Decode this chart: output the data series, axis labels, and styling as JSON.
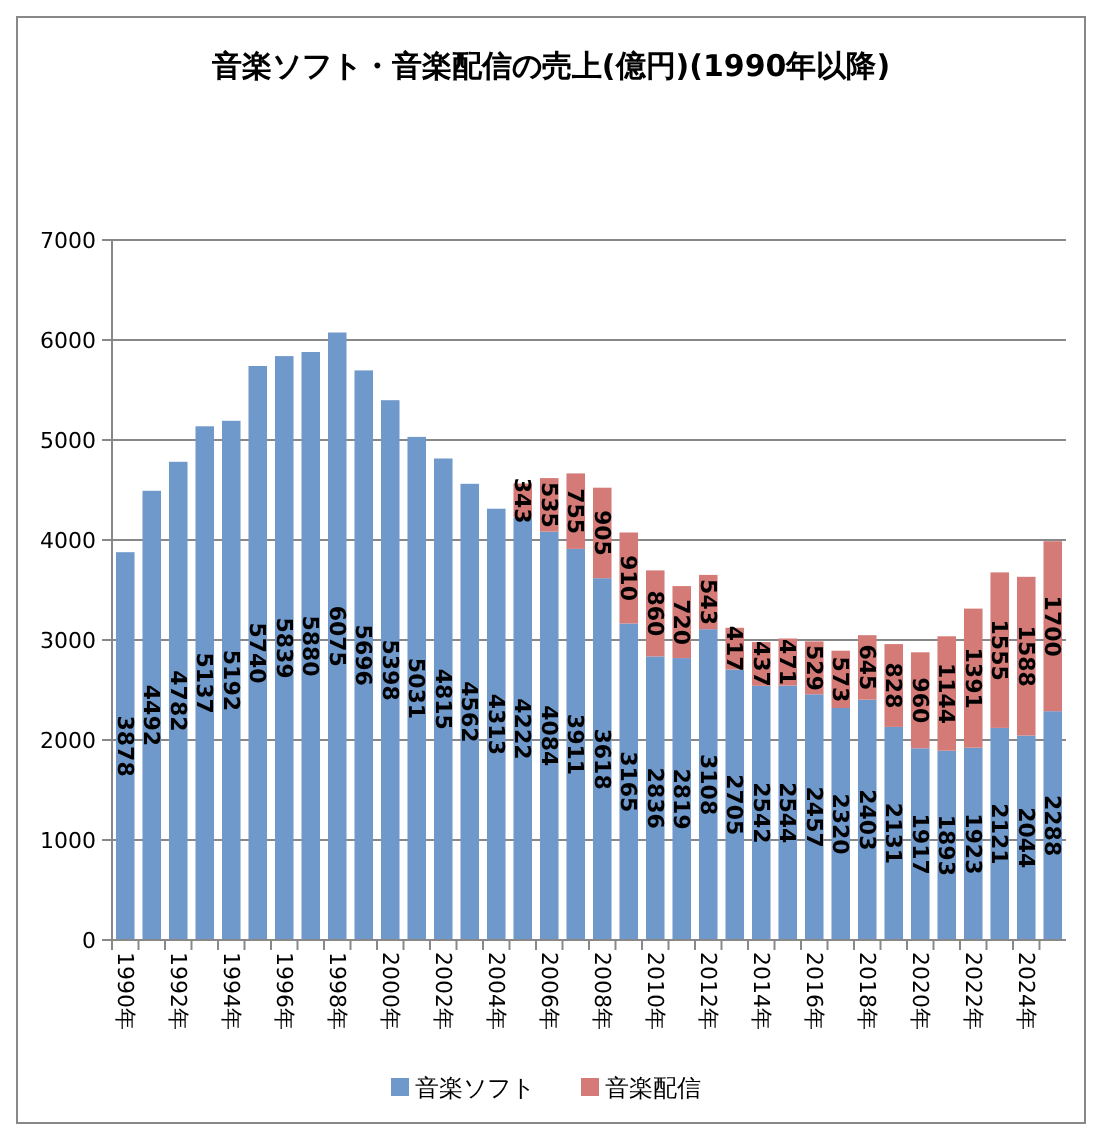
{
  "chart_data": {
    "type": "bar",
    "title": "音楽ソフト・音楽配信の売上(億円)(1990年以降)",
    "categories": [
      "1990年",
      null,
      "1992年",
      null,
      "1994年",
      null,
      "1996年",
      null,
      "1998年",
      null,
      "2000年",
      null,
      "2002年",
      null,
      "2004年",
      null,
      "2006年",
      null,
      "2008年",
      null,
      "2010年",
      null,
      "2012年",
      null,
      "2014年",
      null,
      "2016年",
      null,
      "2018年",
      null,
      "2020年",
      null,
      "2022年",
      null,
      "2024年",
      null
    ],
    "series": [
      {
        "name": "音楽ソフト",
        "color": "#6f98cb",
        "values": [
          3878,
          4492,
          4782,
          5137,
          5192,
          5740,
          5839,
          5880,
          6075,
          5696,
          5398,
          5031,
          4815,
          4562,
          4313,
          4222,
          4084,
          3911,
          3618,
          3165,
          2836,
          2819,
          3108,
          2705,
          2542,
          2544,
          2457,
          2320,
          2403,
          2131,
          1917,
          1893,
          1923,
          2121,
          2044,
          2288
        ]
      },
      {
        "name": "音楽配信",
        "color": "#d47b78",
        "values": [
          null,
          null,
          null,
          null,
          null,
          null,
          null,
          null,
          null,
          null,
          null,
          null,
          null,
          null,
          null,
          343,
          535,
          755,
          905,
          910,
          860,
          720,
          543,
          417,
          437,
          471,
          529,
          573,
          645,
          828,
          960,
          1144,
          1391,
          1555,
          1588,
          1700
        ]
      }
    ],
    "stacked": true,
    "ylim": [
      0,
      7000
    ],
    "yticks": [
      0,
      1000,
      2000,
      3000,
      4000,
      5000,
      6000,
      7000
    ],
    "grid": "y",
    "legend": "bottom",
    "data_labels": true
  }
}
